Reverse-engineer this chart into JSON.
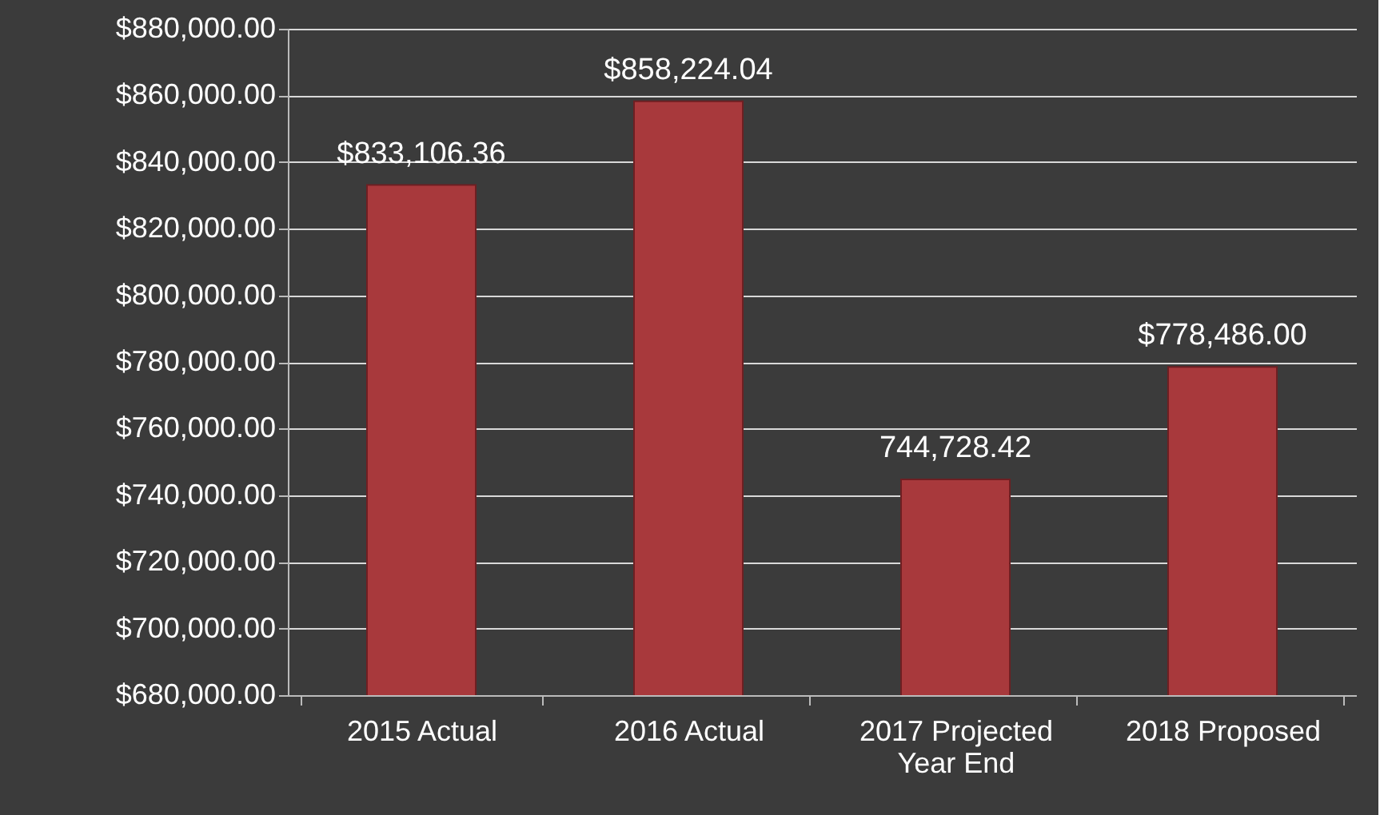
{
  "chart_data": {
    "type": "bar",
    "categories": [
      "2015 Actual",
      "2016 Actual",
      "2017 Projected Year End",
      "2018 Proposed"
    ],
    "values": [
      833106.36,
      858224.04,
      744728.42,
      778486.0
    ],
    "value_labels": [
      "$833,106.36",
      "$858,224.04",
      "744,728.42",
      "$778,486.00"
    ],
    "color": "#a8393c",
    "ylim": [
      680000,
      880000
    ],
    "yticks": [
      {
        "value": 680000,
        "label": "$680,000.00"
      },
      {
        "value": 700000,
        "label": "$700,000.00"
      },
      {
        "value": 720000,
        "label": "$720,000.00"
      },
      {
        "value": 740000,
        "label": "$740,000.00"
      },
      {
        "value": 760000,
        "label": "$760,000.00"
      },
      {
        "value": 780000,
        "label": "$780,000.00"
      },
      {
        "value": 800000,
        "label": "$800,000.00"
      },
      {
        "value": 820000,
        "label": "$820,000.00"
      },
      {
        "value": 840000,
        "label": "$840,000.00"
      },
      {
        "value": 860000,
        "label": "$860,000.00"
      },
      {
        "value": 880000,
        "label": "$880,000.00"
      }
    ],
    "grid": "y"
  }
}
